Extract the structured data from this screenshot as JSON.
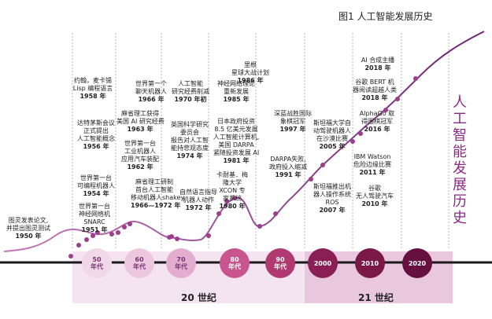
{
  "figure_title": "图1 人工智能发展历史",
  "side_title": "人工智能发展历史",
  "centuries": [
    "20 世纪",
    "21 世纪"
  ],
  "decades": [
    {
      "label": "50\n年代",
      "color": "#f1d8e8",
      "text": "#7a3572"
    },
    {
      "label": "60\n年代",
      "color": "#ecc7df",
      "text": "#7a3572"
    },
    {
      "label": "70\n年代",
      "color": "#e3add0",
      "text": "#7a3572"
    },
    {
      "label": "80\n年代",
      "color": "#c8558e",
      "text": "#ffffff"
    },
    {
      "label": "90\n年代",
      "color": "#b03a70",
      "text": "#ffffff"
    },
    {
      "label": "2000",
      "color": "#8a1f56",
      "text": "#ffffff"
    },
    {
      "label": "2010",
      "color": "#7a1848",
      "text": "#ffffff"
    },
    {
      "label": "2020",
      "color": "#661040",
      "text": "#ffffff"
    }
  ],
  "events": [
    {
      "text": "图灵发表论文,\n并提出图灵测试",
      "year": "1950 年"
    },
    {
      "text": "世界第一台\n神经网络机\nSNARC",
      "year": "1951 年"
    },
    {
      "text": "世界第一台\n可编程机器人",
      "year": "1954 年"
    },
    {
      "text": "达特茅斯会议\n正式提出\n人工智能概念",
      "year": "1956 年"
    },
    {
      "text": "约翰，麦卡锡\nLisp 编程语言",
      "year": "1958 年"
    },
    {
      "text": "麻省理工研制\n首台人工智能\n移动机器人shakey",
      "year": "1966—1972 年"
    },
    {
      "text": "世界第一台\n工业机器人\n应用汽车装配",
      "year": "1962 年"
    },
    {
      "text": "麻省理工获得\n美国 AI 研究经费",
      "year": "1963 年"
    },
    {
      "text": "世界第一个\n聊天机器人",
      "year": "1966 年"
    },
    {
      "text": "自然语言指导\n机器人动作",
      "year": "1972 年"
    },
    {
      "text": "英国科学研究\n委员会\n报告对人工智\n能持悲观态度",
      "year": "1974 年"
    },
    {
      "text": "人工智能\n研究经费削减",
      "year": "1970 年初"
    },
    {
      "text": "卡耐基．梅\n隆大学\nXCON 专\n家系统",
      "year": "1980 年"
    },
    {
      "text": "日本政府投资\n8.5 亿美元发展\n人工智能计算机,\n美国 DARPA\n紧随投资发展 AI",
      "year": "1981 年"
    },
    {
      "text": "神经网络理论\n重新发展",
      "year": "1985 年"
    },
    {
      "text": "里根\n星球大战计划",
      "year": "1986 年"
    },
    {
      "text": "DARPA失败,\n政府投入缩减",
      "year": "1991 年"
    },
    {
      "text": "深蓝战胜国际\n象棋冠军",
      "year": "1997 年"
    },
    {
      "text": "斯坦福大学自\n动驾驶机器人\n在沙漠比赛",
      "year": "2005 年"
    },
    {
      "text": "斯坦福推出机\n器人操作系统\nROS",
      "year": "2007 年"
    },
    {
      "text": "IBM Watson\n危险边缘比赛",
      "year": "2011 年"
    },
    {
      "text": "谷歌\n无人驾驶汽车",
      "year": "2010 年"
    },
    {
      "text": "AlphaGo 取\n得围棋冠军",
      "year": "2016 年"
    },
    {
      "text": "谷歌 BERT 机\n器阅读超越人类",
      "year": "2018 年"
    },
    {
      "text": "AI 合成主播",
      "year": "2018 年"
    }
  ]
}
